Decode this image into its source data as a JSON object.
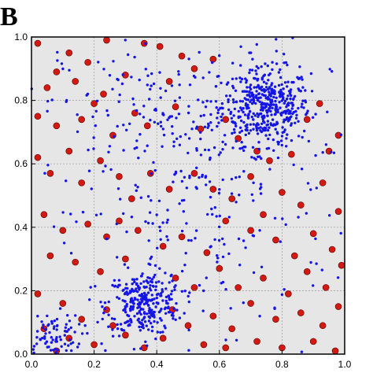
{
  "panel_label": "B",
  "chart_data": {
    "type": "scatter",
    "title": "",
    "xlabel": "",
    "ylabel": "",
    "xlim": [
      0.0,
      1.0
    ],
    "ylim": [
      0.0,
      1.0
    ],
    "grid": true,
    "background": "#e6e6e6",
    "x_ticks": [
      "0.0",
      "0.2",
      "0.4",
      "0.6",
      "0.8",
      "1.0"
    ],
    "y_ticks": [
      "0.0",
      "0.2",
      "0.4",
      "0.6",
      "0.8",
      "1.0"
    ],
    "series": [
      {
        "color": "#d31a12",
        "marker": "circle",
        "points": [
          [
            0.02,
            0.98
          ],
          [
            0.08,
            0.89
          ],
          [
            0.12,
            0.95
          ],
          [
            0.18,
            0.92
          ],
          [
            0.24,
            0.99
          ],
          [
            0.05,
            0.84
          ],
          [
            0.14,
            0.86
          ],
          [
            0.2,
            0.79
          ],
          [
            0.23,
            0.82
          ],
          [
            0.3,
            0.88
          ],
          [
            0.36,
            0.98
          ],
          [
            0.41,
            0.97
          ],
          [
            0.48,
            0.94
          ],
          [
            0.52,
            0.9
          ],
          [
            0.58,
            0.93
          ],
          [
            0.02,
            0.75
          ],
          [
            0.08,
            0.72
          ],
          [
            0.16,
            0.74
          ],
          [
            0.26,
            0.69
          ],
          [
            0.33,
            0.76
          ],
          [
            0.37,
            0.72
          ],
          [
            0.44,
            0.86
          ],
          [
            0.46,
            0.78
          ],
          [
            0.54,
            0.71
          ],
          [
            0.62,
            0.74
          ],
          [
            0.66,
            0.68
          ],
          [
            0.72,
            0.64
          ],
          [
            0.76,
            0.61
          ],
          [
            0.83,
            0.63
          ],
          [
            0.88,
            0.74
          ],
          [
            0.92,
            0.79
          ],
          [
            0.95,
            0.64
          ],
          [
            0.98,
            0.69
          ],
          [
            0.02,
            0.62
          ],
          [
            0.06,
            0.57
          ],
          [
            0.12,
            0.64
          ],
          [
            0.16,
            0.54
          ],
          [
            0.22,
            0.61
          ],
          [
            0.28,
            0.56
          ],
          [
            0.32,
            0.49
          ],
          [
            0.38,
            0.57
          ],
          [
            0.44,
            0.52
          ],
          [
            0.52,
            0.57
          ],
          [
            0.58,
            0.52
          ],
          [
            0.64,
            0.49
          ],
          [
            0.7,
            0.56
          ],
          [
            0.74,
            0.44
          ],
          [
            0.8,
            0.51
          ],
          [
            0.86,
            0.47
          ],
          [
            0.93,
            0.54
          ],
          [
            0.98,
            0.45
          ],
          [
            0.04,
            0.44
          ],
          [
            0.1,
            0.39
          ],
          [
            0.18,
            0.41
          ],
          [
            0.24,
            0.37
          ],
          [
            0.28,
            0.42
          ],
          [
            0.34,
            0.39
          ],
          [
            0.42,
            0.34
          ],
          [
            0.48,
            0.37
          ],
          [
            0.56,
            0.32
          ],
          [
            0.62,
            0.42
          ],
          [
            0.7,
            0.39
          ],
          [
            0.78,
            0.36
          ],
          [
            0.84,
            0.31
          ],
          [
            0.9,
            0.38
          ],
          [
            0.96,
            0.33
          ],
          [
            0.06,
            0.31
          ],
          [
            0.14,
            0.29
          ],
          [
            0.22,
            0.26
          ],
          [
            0.3,
            0.3
          ],
          [
            0.46,
            0.24
          ],
          [
            0.52,
            0.21
          ],
          [
            0.6,
            0.27
          ],
          [
            0.66,
            0.21
          ],
          [
            0.74,
            0.24
          ],
          [
            0.82,
            0.19
          ],
          [
            0.88,
            0.26
          ],
          [
            0.94,
            0.21
          ],
          [
            0.99,
            0.28
          ],
          [
            0.02,
            0.19
          ],
          [
            0.1,
            0.16
          ],
          [
            0.24,
            0.14
          ],
          [
            0.45,
            0.14
          ],
          [
            0.5,
            0.09
          ],
          [
            0.58,
            0.12
          ],
          [
            0.64,
            0.08
          ],
          [
            0.7,
            0.16
          ],
          [
            0.78,
            0.11
          ],
          [
            0.86,
            0.13
          ],
          [
            0.93,
            0.09
          ],
          [
            0.98,
            0.15
          ],
          [
            0.04,
            0.08
          ],
          [
            0.12,
            0.05
          ],
          [
            0.16,
            0.11
          ],
          [
            0.2,
            0.03
          ],
          [
            0.3,
            0.06
          ],
          [
            0.36,
            0.02
          ],
          [
            0.42,
            0.05
          ],
          [
            0.55,
            0.03
          ],
          [
            0.62,
            0.02
          ],
          [
            0.72,
            0.04
          ],
          [
            0.8,
            0.02
          ],
          [
            0.9,
            0.04
          ],
          [
            0.97,
            0.01
          ],
          [
            0.08,
            0.01
          ],
          [
            0.26,
            0.09
          ]
        ]
      },
      {
        "color": "#1515e6",
        "marker": "dot",
        "clusters": [
          {
            "center": [
              0.75,
              0.78
            ],
            "spread": [
              0.07,
              0.06
            ],
            "count": 420
          },
          {
            "center": [
              0.36,
              0.16
            ],
            "spread": [
              0.06,
              0.05
            ],
            "count": 300
          },
          {
            "center": [
              0.06,
              0.05
            ],
            "spread": [
              0.05,
              0.04
            ],
            "count": 90
          },
          {
            "center": [
              0.5,
              0.75
            ],
            "spread": [
              0.2,
              0.12
            ],
            "count": 160
          },
          {
            "center": [
              0.55,
              0.45
            ],
            "spread": [
              0.2,
              0.2
            ],
            "count": 180
          },
          {
            "center": [
              0.5,
              0.5
            ],
            "spread": [
              0.4,
              0.4
            ],
            "count": 120
          }
        ]
      }
    ]
  }
}
